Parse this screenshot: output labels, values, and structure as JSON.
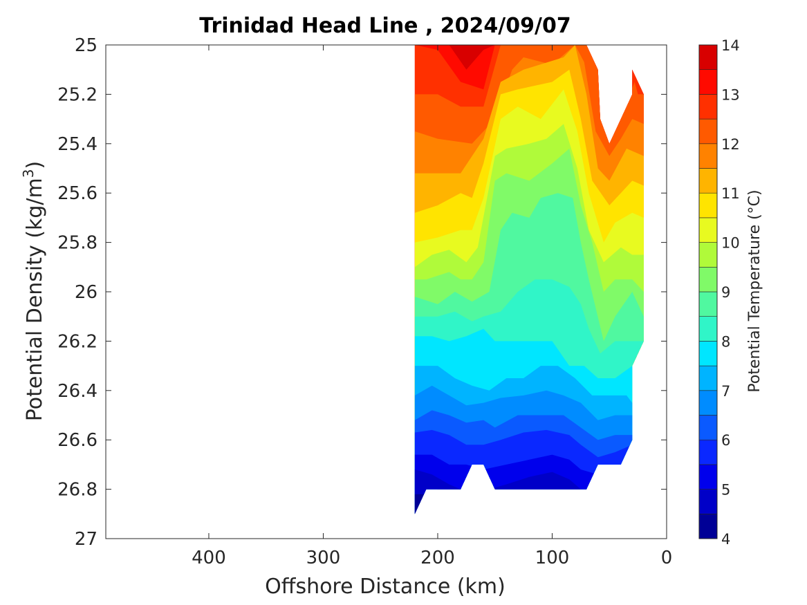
{
  "chart_data": {
    "type": "heatmap",
    "title": "Trinidad Head Line , 2024/09/07",
    "xlabel": "Offshore Distance (km)",
    "ylabel_main": "Potential Density (kg/m",
    "ylabel_sup": "3",
    "ylabel_end": ")",
    "xlim": [
      490,
      0
    ],
    "ylim": [
      25,
      27
    ],
    "y_reversed": true,
    "x_reversed": true,
    "xticks": [
      400,
      300,
      200,
      100,
      0
    ],
    "yticks": [
      "25",
      "25.2",
      "25.4",
      "25.6",
      "25.8",
      "26",
      "26.2",
      "26.4",
      "26.6",
      "26.8",
      "27"
    ],
    "grid": false,
    "colorbar": {
      "label": "Potential Temperature (°C)",
      "range": [
        4,
        14
      ],
      "ticks": [
        "4",
        "5",
        "6",
        "7",
        "8",
        "9",
        "10",
        "11",
        "12",
        "13",
        "14"
      ],
      "levels": [
        4,
        4.5,
        5,
        5.5,
        6,
        6.5,
        7,
        7.5,
        8,
        8.5,
        9,
        9.5,
        10,
        10.5,
        11,
        11.5,
        12,
        12.5,
        13,
        13.5,
        14
      ],
      "colors": [
        "#000096",
        "#0000c8",
        "#0000ec",
        "#0a28ff",
        "#0a5aff",
        "#008cff",
        "#00b4ff",
        "#00e6ff",
        "#30f5c8",
        "#50f8a0",
        "#80fa68",
        "#b0fa3a",
        "#e8fa20",
        "#ffe400",
        "#ffb400",
        "#ff8200",
        "#ff5a00",
        "#ff3000",
        "#ff0a00",
        "#d80000"
      ]
    },
    "contour_lines": [
      {
        "level": 13.5,
        "points": [
          [
            190,
            25.0
          ],
          [
            175,
            25.1
          ],
          [
            160,
            25.02
          ],
          [
            150,
            25.0
          ]
        ]
      },
      {
        "level": 13.0,
        "points": [
          [
            220,
            25.0
          ],
          [
            200,
            25.02
          ],
          [
            180,
            25.15
          ],
          [
            160,
            25.18
          ],
          [
            150,
            25.0
          ]
        ]
      },
      {
        "level": 12.5,
        "points": [
          [
            220,
            25.2
          ],
          [
            200,
            25.2
          ],
          [
            180,
            25.25
          ],
          [
            160,
            25.25
          ],
          [
            145,
            25.0
          ],
          [
            80,
            25.0
          ],
          [
            70,
            25.0
          ],
          [
            60,
            25.1
          ],
          [
            58,
            25.15
          ],
          [
            55,
            25.33
          ],
          [
            50,
            25.4
          ],
          [
            40,
            25.3
          ],
          [
            28,
            25.15
          ],
          [
            25,
            25.2
          ],
          [
            20,
            25.2
          ]
        ]
      },
      {
        "level": 12.0,
        "points": [
          [
            220,
            25.35
          ],
          [
            200,
            25.38
          ],
          [
            170,
            25.4
          ],
          [
            150,
            25.3
          ],
          [
            135,
            25.1
          ],
          [
            125,
            25.05
          ],
          [
            100,
            25.08
          ],
          [
            80,
            25.0
          ],
          [
            72,
            25.07
          ],
          [
            62,
            25.35
          ],
          [
            50,
            25.45
          ],
          [
            40,
            25.38
          ],
          [
            30,
            25.3
          ],
          [
            20,
            25.32
          ]
        ]
      },
      {
        "level": 11.5,
        "points": [
          [
            220,
            25.52
          ],
          [
            200,
            25.52
          ],
          [
            180,
            25.52
          ],
          [
            160,
            25.38
          ],
          [
            145,
            25.15
          ],
          [
            125,
            25.1
          ],
          [
            90,
            25.05
          ],
          [
            80,
            25.0
          ],
          [
            70,
            25.2
          ],
          [
            60,
            25.5
          ],
          [
            50,
            25.55
          ],
          [
            35,
            25.42
          ],
          [
            20,
            25.45
          ]
        ]
      },
      {
        "level": 11.0,
        "points": [
          [
            220,
            25.68
          ],
          [
            200,
            25.65
          ],
          [
            180,
            25.6
          ],
          [
            170,
            25.62
          ],
          [
            160,
            25.48
          ],
          [
            145,
            25.2
          ],
          [
            130,
            25.18
          ],
          [
            100,
            25.15
          ],
          [
            85,
            25.1
          ],
          [
            75,
            25.3
          ],
          [
            65,
            25.55
          ],
          [
            50,
            25.65
          ],
          [
            40,
            25.6
          ],
          [
            30,
            25.55
          ],
          [
            20,
            25.57
          ]
        ]
      },
      {
        "level": 10.5,
        "points": [
          [
            220,
            25.8
          ],
          [
            200,
            25.78
          ],
          [
            180,
            25.75
          ],
          [
            170,
            25.75
          ],
          [
            160,
            25.62
          ],
          [
            145,
            25.3
          ],
          [
            130,
            25.25
          ],
          [
            110,
            25.3
          ],
          [
            90,
            25.18
          ],
          [
            78,
            25.35
          ],
          [
            68,
            25.6
          ],
          [
            55,
            25.8
          ],
          [
            45,
            25.72
          ],
          [
            30,
            25.68
          ],
          [
            20,
            25.7
          ]
        ]
      },
      {
        "level": 10.0,
        "points": [
          [
            220,
            25.9
          ],
          [
            205,
            25.85
          ],
          [
            190,
            25.83
          ],
          [
            175,
            25.88
          ],
          [
            165,
            25.82
          ],
          [
            150,
            25.45
          ],
          [
            140,
            25.42
          ],
          [
            120,
            25.4
          ],
          [
            105,
            25.38
          ],
          [
            90,
            25.32
          ],
          [
            78,
            25.5
          ],
          [
            68,
            25.75
          ],
          [
            55,
            25.88
          ],
          [
            40,
            25.82
          ],
          [
            30,
            25.85
          ],
          [
            20,
            25.85
          ]
        ]
      },
      {
        "level": 9.5,
        "points": [
          [
            220,
            25.95
          ],
          [
            210,
            25.95
          ],
          [
            190,
            25.92
          ],
          [
            180,
            25.95
          ],
          [
            170,
            25.95
          ],
          [
            160,
            25.88
          ],
          [
            150,
            25.55
          ],
          [
            140,
            25.52
          ],
          [
            120,
            25.55
          ],
          [
            100,
            25.48
          ],
          [
            85,
            25.42
          ],
          [
            75,
            25.65
          ],
          [
            65,
            25.8
          ],
          [
            55,
            26.0
          ],
          [
            45,
            25.95
          ],
          [
            30,
            25.95
          ],
          [
            20,
            26.0
          ]
        ]
      },
      {
        "level": 9.0,
        "points": [
          [
            220,
            26.02
          ],
          [
            200,
            26.05
          ],
          [
            185,
            26.0
          ],
          [
            170,
            26.04
          ],
          [
            155,
            26.0
          ],
          [
            145,
            25.75
          ],
          [
            135,
            25.68
          ],
          [
            120,
            25.7
          ],
          [
            110,
            25.62
          ],
          [
            95,
            25.6
          ],
          [
            82,
            25.62
          ],
          [
            75,
            25.8
          ],
          [
            68,
            25.95
          ],
          [
            55,
            26.2
          ],
          [
            45,
            26.1
          ],
          [
            30,
            26.0
          ],
          [
            20,
            26.1
          ]
        ]
      },
      {
        "level": 8.5,
        "points": [
          [
            220,
            26.1
          ],
          [
            200,
            26.1
          ],
          [
            185,
            26.08
          ],
          [
            170,
            26.12
          ],
          [
            160,
            26.1
          ],
          [
            145,
            26.08
          ],
          [
            130,
            26.0
          ],
          [
            115,
            25.95
          ],
          [
            100,
            25.95
          ],
          [
            85,
            25.98
          ],
          [
            75,
            26.05
          ],
          [
            68,
            26.15
          ],
          [
            58,
            26.25
          ],
          [
            45,
            26.2
          ],
          [
            30,
            26.2
          ],
          [
            20,
            26.2
          ]
        ]
      },
      {
        "level": 8.0,
        "points": [
          [
            220,
            26.18
          ],
          [
            205,
            26.18
          ],
          [
            190,
            26.2
          ],
          [
            175,
            26.18
          ],
          [
            160,
            26.15
          ],
          [
            150,
            26.2
          ],
          [
            135,
            26.2
          ],
          [
            120,
            26.2
          ],
          [
            100,
            26.2
          ],
          [
            85,
            26.3
          ],
          [
            72,
            26.3
          ],
          [
            60,
            26.35
          ],
          [
            45,
            26.35
          ],
          [
            30,
            26.3
          ],
          [
            20,
            26.28
          ]
        ]
      },
      {
        "level": 7.5,
        "points": [
          [
            220,
            26.3
          ],
          [
            200,
            26.3
          ],
          [
            185,
            26.35
          ],
          [
            170,
            26.38
          ],
          [
            155,
            26.4
          ],
          [
            140,
            26.35
          ],
          [
            125,
            26.35
          ],
          [
            110,
            26.3
          ],
          [
            95,
            26.3
          ],
          [
            80,
            26.35
          ],
          [
            65,
            26.42
          ],
          [
            50,
            26.42
          ],
          [
            35,
            26.42
          ],
          [
            30,
            26.45
          ]
        ]
      },
      {
        "level": 7.0,
        "points": [
          [
            220,
            26.42
          ],
          [
            205,
            26.38
          ],
          [
            190,
            26.42
          ],
          [
            175,
            26.46
          ],
          [
            160,
            26.45
          ],
          [
            145,
            26.43
          ],
          [
            125,
            26.42
          ],
          [
            105,
            26.4
          ],
          [
            90,
            26.42
          ],
          [
            75,
            26.45
          ],
          [
            60,
            26.52
          ],
          [
            45,
            26.5
          ],
          [
            30,
            26.5
          ]
        ]
      },
      {
        "level": 6.5,
        "points": [
          [
            220,
            26.52
          ],
          [
            205,
            26.48
          ],
          [
            190,
            26.5
          ],
          [
            175,
            26.53
          ],
          [
            160,
            26.52
          ],
          [
            150,
            26.55
          ],
          [
            130,
            26.5
          ],
          [
            110,
            26.5
          ],
          [
            90,
            26.5
          ],
          [
            75,
            26.55
          ],
          [
            60,
            26.6
          ],
          [
            45,
            26.58
          ],
          [
            30,
            26.58
          ]
        ]
      },
      {
        "level": 6.0,
        "points": [
          [
            220,
            26.57
          ],
          [
            205,
            26.56
          ],
          [
            190,
            26.58
          ],
          [
            175,
            26.62
          ],
          [
            160,
            26.62
          ],
          [
            145,
            26.6
          ],
          [
            125,
            26.57
          ],
          [
            105,
            26.56
          ],
          [
            85,
            26.58
          ],
          [
            75,
            26.62
          ],
          [
            60,
            26.67
          ],
          [
            45,
            26.65
          ],
          [
            30,
            26.62
          ]
        ]
      },
      {
        "level": 5.5,
        "points": [
          [
            220,
            26.66
          ],
          [
            205,
            26.66
          ],
          [
            190,
            26.7
          ],
          [
            175,
            26.7
          ],
          [
            160,
            26.72
          ],
          [
            140,
            26.7
          ],
          [
            120,
            26.68
          ],
          [
            100,
            26.66
          ],
          [
            85,
            26.68
          ],
          [
            75,
            26.72
          ],
          [
            60,
            26.74
          ]
        ]
      },
      {
        "level": 5.0,
        "points": [
          [
            220,
            26.72
          ],
          [
            205,
            26.74
          ],
          [
            190,
            26.78
          ],
          [
            180,
            26.8
          ],
          [
            155,
            26.8
          ],
          [
            140,
            26.78
          ],
          [
            120,
            26.75
          ],
          [
            100,
            26.73
          ],
          [
            85,
            26.76
          ],
          [
            75,
            26.8
          ]
        ]
      },
      {
        "level": 4.5,
        "points": [
          [
            220,
            26.82
          ],
          [
            210,
            26.82
          ],
          [
            200,
            26.8
          ],
          [
            190,
            26.8
          ]
        ]
      }
    ],
    "data_boundary": [
      [
        220,
        25.0
      ],
      [
        70,
        25.0
      ],
      [
        60,
        25.1
      ],
      [
        58,
        25.3
      ],
      [
        50,
        25.4
      ],
      [
        30,
        25.2
      ],
      [
        30,
        25.1
      ],
      [
        20,
        25.2
      ],
      [
        20,
        26.2
      ],
      [
        30,
        26.3
      ],
      [
        30,
        26.6
      ],
      [
        40,
        26.7
      ],
      [
        60,
        26.7
      ],
      [
        70,
        26.8
      ],
      [
        150,
        26.8
      ],
      [
        160,
        26.7
      ],
      [
        170,
        26.7
      ],
      [
        180,
        26.8
      ],
      [
        210,
        26.8
      ],
      [
        220,
        26.9
      ]
    ]
  }
}
